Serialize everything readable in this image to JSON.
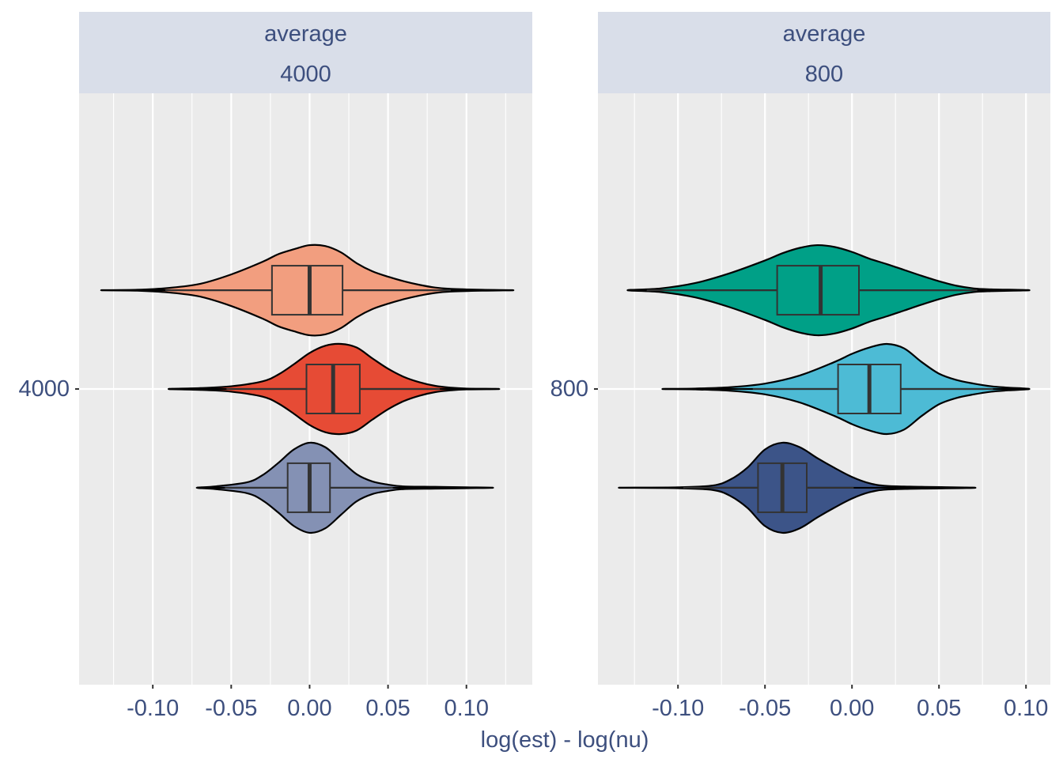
{
  "chart_data": {
    "type": "violin",
    "xlabel": "log(est) - log(nu)",
    "colors": {
      "panel_bg": "#ebebeb",
      "strip_bg": "#d9dee9",
      "grid": "#ffffff",
      "text": "#3d4f7e",
      "outline": "#000000",
      "box_line": "#333333"
    },
    "panels": [
      {
        "strip": [
          "average",
          "4000"
        ],
        "y_tick_label": "4000",
        "xlim": [
          -0.147,
          0.142
        ],
        "x_ticks": [
          -0.1,
          -0.05,
          0.0,
          0.05,
          0.1
        ],
        "x_tick_labels": [
          "-0.10",
          "-0.05",
          "0.00",
          "0.05",
          "0.10"
        ],
        "violins": [
          {
            "color": "#f29e7f",
            "level": 0.667,
            "min": -0.133,
            "max": 0.13,
            "q1": -0.024,
            "median": 0.0,
            "q3": 0.021,
            "whisker_low": -0.092,
            "whisker_high": 0.09,
            "density": [
              [
                -0.133,
                0.0
              ],
              [
                -0.11,
                0.01
              ],
              [
                -0.09,
                0.05
              ],
              [
                -0.07,
                0.14
              ],
              [
                -0.05,
                0.35
              ],
              [
                -0.03,
                0.63
              ],
              [
                -0.02,
                0.8
              ],
              [
                -0.01,
                0.91
              ],
              [
                0.0,
                1.0
              ],
              [
                0.01,
                0.98
              ],
              [
                0.02,
                0.84
              ],
              [
                0.03,
                0.6
              ],
              [
                0.04,
                0.42
              ],
              [
                0.05,
                0.3
              ],
              [
                0.06,
                0.2
              ],
              [
                0.07,
                0.12
              ],
              [
                0.08,
                0.06
              ],
              [
                0.09,
                0.03
              ],
              [
                0.11,
                0.01
              ],
              [
                0.13,
                0.0
              ]
            ]
          },
          {
            "color": "#e64b35",
            "level": 0.5,
            "min": -0.09,
            "max": 0.121,
            "q1": -0.002,
            "median": 0.015,
            "q3": 0.032,
            "whisker_low": -0.053,
            "whisker_high": 0.083,
            "density": [
              [
                -0.09,
                0.0
              ],
              [
                -0.07,
                0.02
              ],
              [
                -0.05,
                0.06
              ],
              [
                -0.03,
                0.17
              ],
              [
                -0.02,
                0.32
              ],
              [
                -0.01,
                0.55
              ],
              [
                0.0,
                0.8
              ],
              [
                0.01,
                0.96
              ],
              [
                0.02,
                1.0
              ],
              [
                0.03,
                0.92
              ],
              [
                0.04,
                0.68
              ],
              [
                0.05,
                0.45
              ],
              [
                0.06,
                0.27
              ],
              [
                0.07,
                0.15
              ],
              [
                0.08,
                0.07
              ],
              [
                0.09,
                0.03
              ],
              [
                0.1,
                0.01
              ],
              [
                0.121,
                0.0
              ]
            ]
          },
          {
            "color": "#8491b4",
            "level": 0.333,
            "min": -0.072,
            "max": 0.117,
            "q1": -0.014,
            "median": 0.0,
            "q3": 0.013,
            "whisker_low": -0.054,
            "whisker_high": 0.053,
            "density": [
              [
                -0.072,
                0.0
              ],
              [
                -0.06,
                0.03
              ],
              [
                -0.04,
                0.12
              ],
              [
                -0.03,
                0.28
              ],
              [
                -0.02,
                0.55
              ],
              [
                -0.01,
                0.85
              ],
              [
                0.0,
                1.0
              ],
              [
                0.01,
                0.9
              ],
              [
                0.02,
                0.6
              ],
              [
                0.03,
                0.3
              ],
              [
                0.04,
                0.14
              ],
              [
                0.05,
                0.07
              ],
              [
                0.06,
                0.03
              ],
              [
                0.08,
                0.02
              ],
              [
                0.1,
                0.01
              ],
              [
                0.117,
                0.0
              ]
            ]
          }
        ]
      },
      {
        "strip": [
          "average",
          "800"
        ],
        "y_tick_label": "800",
        "xlim": [
          -0.146,
          0.114
        ],
        "x_ticks": [
          -0.1,
          -0.05,
          0.0,
          0.05,
          0.1
        ],
        "x_tick_labels": [
          "-0.10",
          "-0.05",
          "0.00",
          "0.05",
          "0.10"
        ],
        "violins": [
          {
            "color": "#00a087",
            "level": 0.667,
            "min": -0.129,
            "max": 0.102,
            "q1": -0.043,
            "median": -0.018,
            "q3": 0.004,
            "whisker_low": -0.118,
            "whisker_high": 0.072,
            "density": [
              [
                -0.129,
                0.0
              ],
              [
                -0.11,
                0.04
              ],
              [
                -0.09,
                0.16
              ],
              [
                -0.07,
                0.38
              ],
              [
                -0.05,
                0.66
              ],
              [
                -0.04,
                0.82
              ],
              [
                -0.03,
                0.94
              ],
              [
                -0.02,
                1.0
              ],
              [
                -0.01,
                0.96
              ],
              [
                0.0,
                0.85
              ],
              [
                0.01,
                0.7
              ],
              [
                0.02,
                0.58
              ],
              [
                0.03,
                0.45
              ],
              [
                0.04,
                0.32
              ],
              [
                0.05,
                0.2
              ],
              [
                0.06,
                0.1
              ],
              [
                0.07,
                0.04
              ],
              [
                0.08,
                0.02
              ],
              [
                0.102,
                0.0
              ]
            ]
          },
          {
            "color": "#4dbbd5",
            "level": 0.5,
            "min": -0.109,
            "max": 0.102,
            "q1": -0.008,
            "median": 0.01,
            "q3": 0.028,
            "whisker_low": -0.057,
            "whisker_high": 0.081,
            "density": [
              [
                -0.109,
                0.0
              ],
              [
                -0.09,
                0.01
              ],
              [
                -0.07,
                0.04
              ],
              [
                -0.05,
                0.12
              ],
              [
                -0.03,
                0.3
              ],
              [
                -0.01,
                0.6
              ],
              [
                0.0,
                0.78
              ],
              [
                0.01,
                0.92
              ],
              [
                0.02,
                1.0
              ],
              [
                0.03,
                0.9
              ],
              [
                0.04,
                0.6
              ],
              [
                0.05,
                0.34
              ],
              [
                0.06,
                0.2
              ],
              [
                0.07,
                0.12
              ],
              [
                0.08,
                0.06
              ],
              [
                0.09,
                0.03
              ],
              [
                0.102,
                0.0
              ]
            ]
          },
          {
            "color": "#3c5488",
            "level": 0.333,
            "min": -0.134,
            "max": 0.071,
            "q1": -0.054,
            "median": -0.04,
            "q3": -0.026,
            "whisker_low": -0.097,
            "whisker_high": 0.001,
            "density": [
              [
                -0.134,
                0.0
              ],
              [
                -0.1,
                0.01
              ],
              [
                -0.08,
                0.05
              ],
              [
                -0.07,
                0.18
              ],
              [
                -0.06,
                0.45
              ],
              [
                -0.05,
                0.85
              ],
              [
                -0.04,
                1.0
              ],
              [
                -0.03,
                0.9
              ],
              [
                -0.02,
                0.66
              ],
              [
                -0.01,
                0.44
              ],
              [
                0.0,
                0.24
              ],
              [
                0.01,
                0.1
              ],
              [
                0.02,
                0.04
              ],
              [
                0.04,
                0.02
              ],
              [
                0.071,
                0.0
              ]
            ]
          }
        ]
      }
    ]
  }
}
